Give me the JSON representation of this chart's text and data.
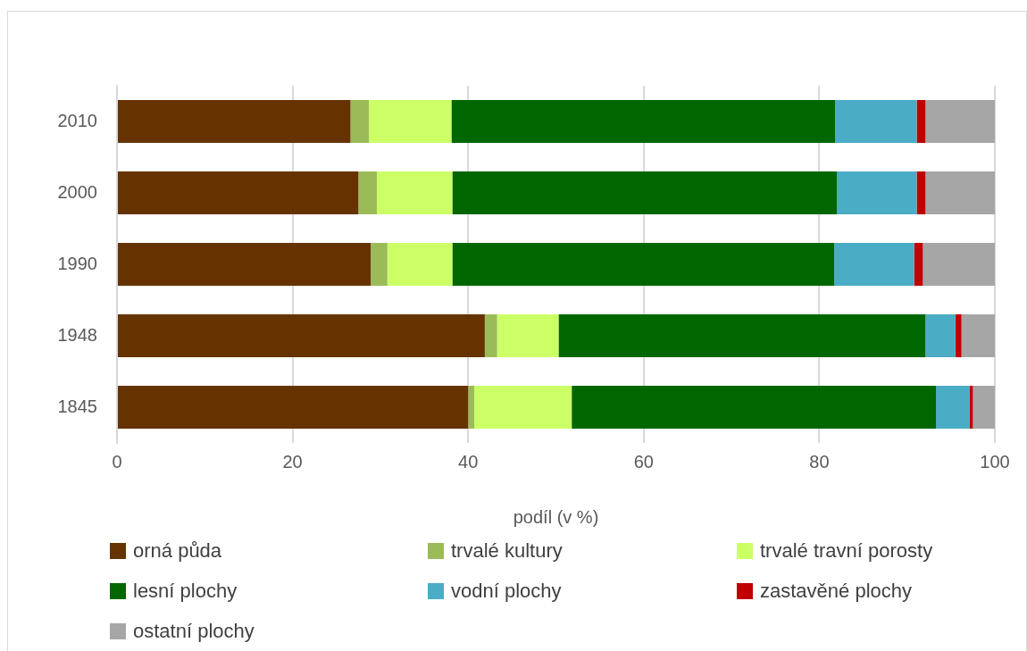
{
  "chart_data": {
    "type": "bar",
    "orientation": "horizontal",
    "stacked": true,
    "xlabel": "podíl (v %)",
    "categories": [
      "2010",
      "2000",
      "1990",
      "1948",
      "1845"
    ],
    "series": [
      {
        "name": "orná půda",
        "color": "#663300",
        "values": [
          26.6,
          27.5,
          28.9,
          41.9,
          40.0
        ]
      },
      {
        "name": "trvalé kultury",
        "color": "#9bbb59",
        "values": [
          2.1,
          2.1,
          1.9,
          1.4,
          0.7
        ]
      },
      {
        "name": "trvalé travní porosty",
        "color": "#ccff66",
        "values": [
          9.4,
          8.6,
          7.4,
          7.0,
          11.1
        ]
      },
      {
        "name": "lesní plochy",
        "color": "#006600",
        "values": [
          43.7,
          43.8,
          43.5,
          41.8,
          41.5
        ]
      },
      {
        "name": "vodní plochy",
        "color": "#4bacc6",
        "values": [
          9.3,
          9.1,
          9.1,
          3.4,
          3.8
        ]
      },
      {
        "name": "zastavěné plochy",
        "color": "#c00000",
        "values": [
          1.0,
          1.0,
          1.0,
          0.7,
          0.4
        ]
      },
      {
        "name": "ostatní plochy",
        "color": "#a6a6a6",
        "values": [
          7.9,
          7.9,
          8.2,
          3.8,
          2.5
        ]
      }
    ],
    "xlim": [
      0,
      100
    ],
    "xticks": [
      0,
      20,
      40,
      60,
      80,
      100
    ],
    "grid": "x",
    "legend": "bottom"
  }
}
